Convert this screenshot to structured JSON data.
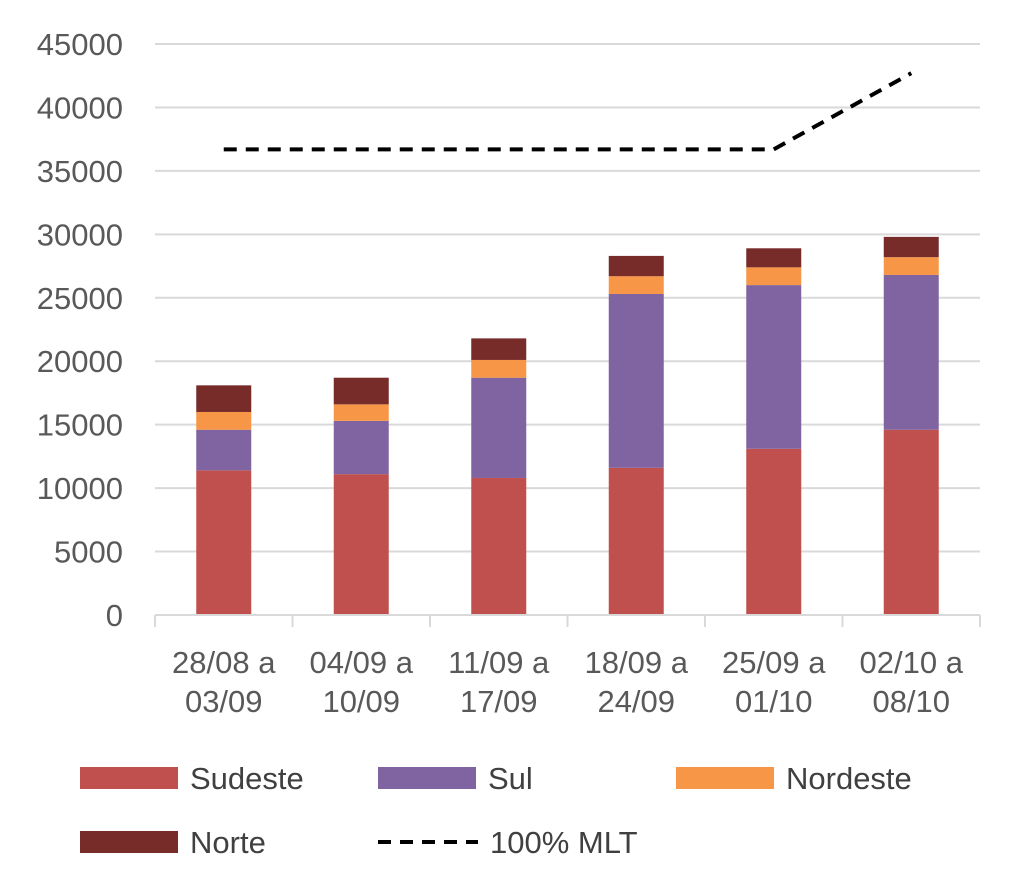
{
  "chart_data": {
    "type": "bar",
    "stacked": true,
    "categories_line1": [
      "28/08 a",
      "04/09 a",
      "11/09 a",
      "18/09 a",
      "25/09 a",
      "02/10 a"
    ],
    "categories_line2": [
      "03/09",
      "10/09",
      "17/09",
      "24/09",
      "01/10",
      "08/10"
    ],
    "ylim": [
      0,
      45000
    ],
    "yticks": [
      0,
      5000,
      10000,
      15000,
      20000,
      25000,
      30000,
      35000,
      40000,
      45000
    ],
    "grid": true,
    "legend_position": "bottom",
    "series": [
      {
        "name": "Sudeste",
        "color": "#C0504D",
        "values": [
          11400,
          11100,
          10800,
          11600,
          13100,
          14600
        ]
      },
      {
        "name": "Sul",
        "color": "#8064A2",
        "values": [
          3200,
          4200,
          7900,
          13700,
          12900,
          12200
        ]
      },
      {
        "name": "Nordeste",
        "color": "#F79646",
        "values": [
          1400,
          1300,
          1400,
          1400,
          1400,
          1400
        ]
      },
      {
        "name": "Norte",
        "color": "#772C2A",
        "values": [
          2100,
          2100,
          1700,
          1600,
          1500,
          1600
        ]
      }
    ],
    "line": {
      "name": "100% MLT",
      "color": "#000000",
      "dashed": true,
      "values": [
        36700,
        36700,
        36700,
        36700,
        36700,
        42700
      ]
    }
  }
}
